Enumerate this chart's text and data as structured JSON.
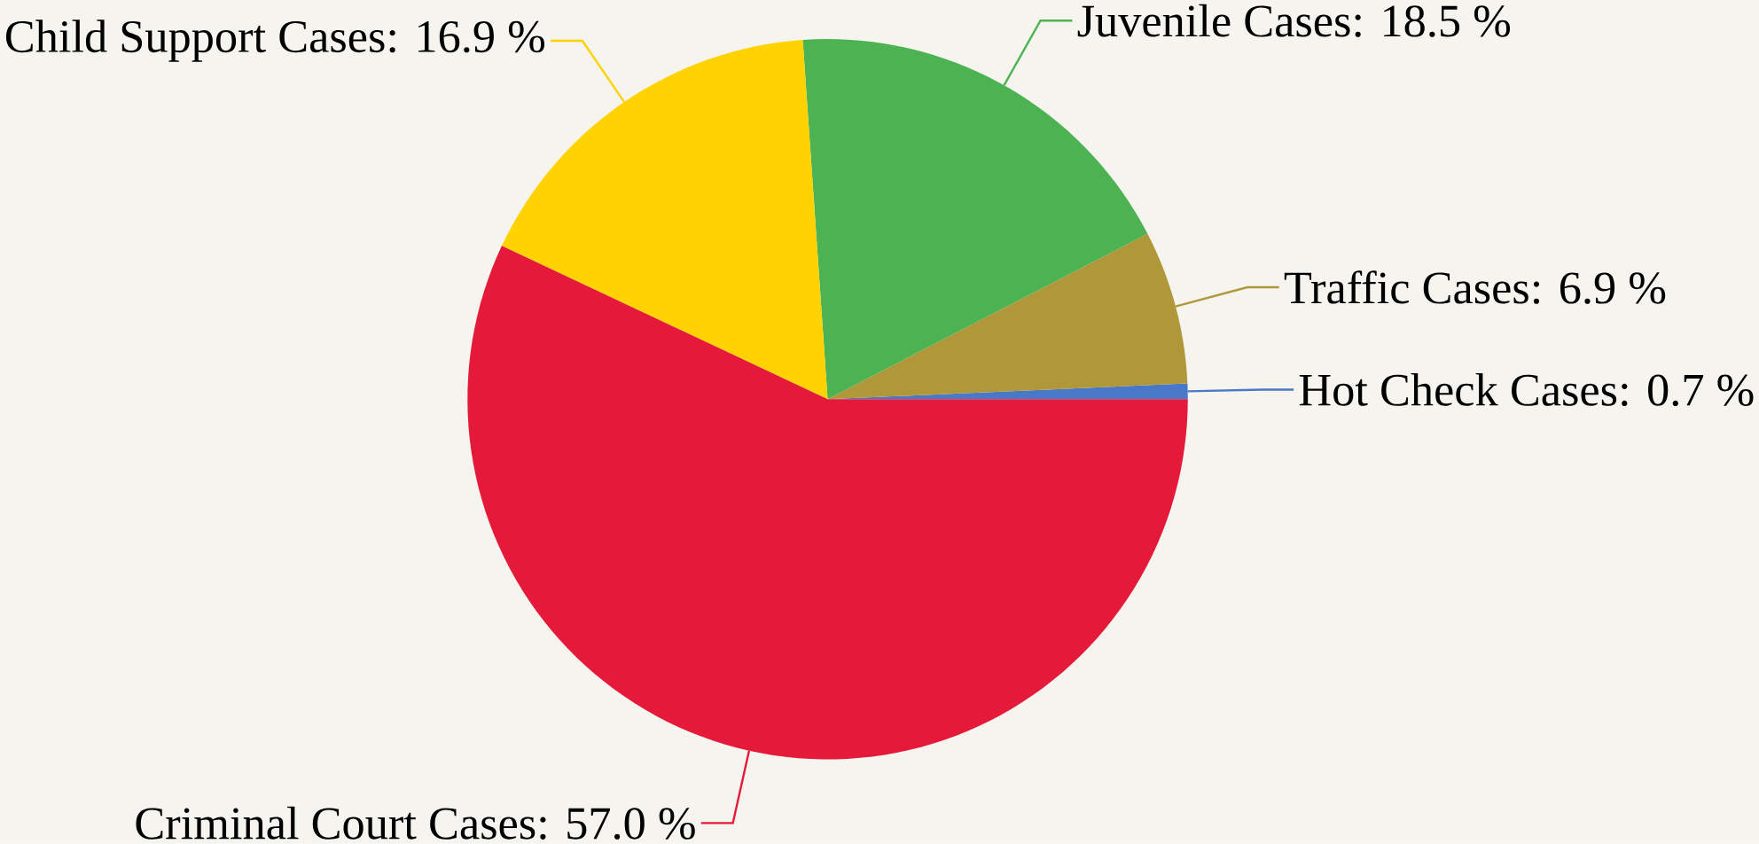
{
  "chart_data": {
    "type": "pie",
    "categories": [
      "Hot Check Cases",
      "Traffic Cases",
      "Juvenile Cases",
      "Child Support Cases",
      "Criminal Court Cases"
    ],
    "values": [
      0.7,
      6.9,
      18.5,
      16.9,
      57.0
    ],
    "colors": [
      "#4a78c8",
      "#b0973a",
      "#4db352",
      "#ffd200",
      "#e5193a"
    ],
    "value_labels": [
      ": 0.7 %",
      ": 6.9 %",
      ": 18.5 %",
      ": 16.9 %",
      ": 57.0 %"
    ]
  }
}
